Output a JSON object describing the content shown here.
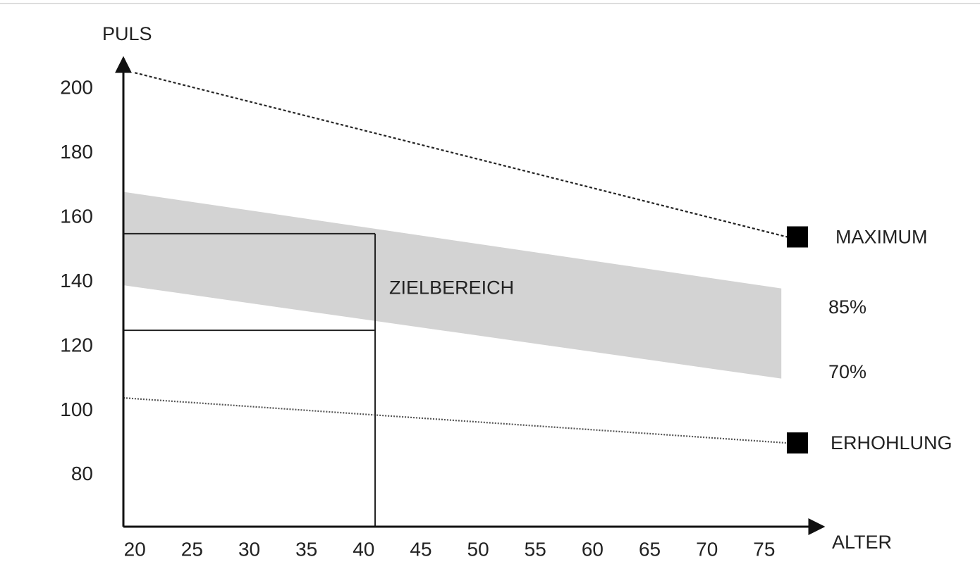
{
  "chart_data": {
    "type": "line",
    "y_label": "PULS",
    "x_label": "ALTER",
    "xlim": [
      19,
      80
    ],
    "ylim": [
      64,
      209
    ],
    "xticks": [
      20,
      25,
      30,
      35,
      40,
      45,
      50,
      55,
      60,
      65,
      70,
      75
    ],
    "yticks": [
      80,
      100,
      120,
      140,
      160,
      180,
      200
    ],
    "series": [
      {
        "name": "MAXIMUM",
        "color": "#222222",
        "x": [
          20,
          77
        ],
        "values": [
          205,
          154
        ]
      },
      {
        "name": "ERHOHLUNG",
        "color": "#555555",
        "x": [
          19,
          77
        ],
        "values": [
          104,
          90
        ]
      }
    ],
    "band": {
      "color": "#d3d3d3",
      "x": [
        19,
        76.5
      ],
      "upper": {
        "name": "85%",
        "values": [
          168,
          138
        ]
      },
      "lower": {
        "name": "70%",
        "values": [
          139,
          110
        ]
      }
    },
    "target": {
      "label": "ZIELBEREICH",
      "x": 41,
      "low": 125,
      "high": 155
    }
  }
}
